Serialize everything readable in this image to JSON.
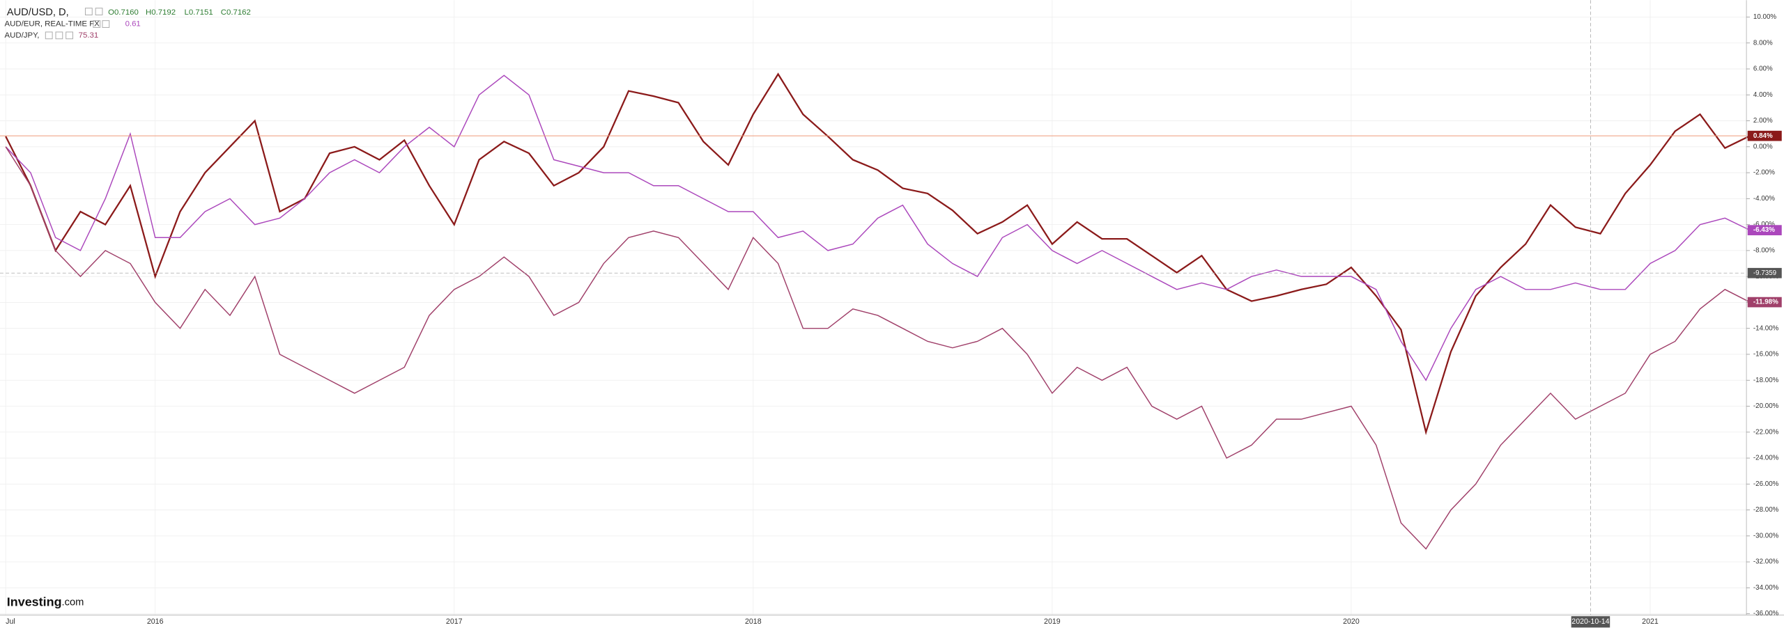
{
  "chart_data": {
    "type": "line",
    "header": {
      "symbol": "AUD/USD, D,",
      "open": "O0.7160",
      "high": "H0.7192",
      "low": "L0.7151",
      "close": "C0.7162",
      "compare1": "AUD/EUR, REAL-TIME FX",
      "compare1_value": "0.61",
      "compare2": "AUD/JPY,",
      "compare2_value": "75.31"
    },
    "categories": [
      "Jul",
      null,
      null,
      null,
      null,
      null,
      "2016",
      null,
      null,
      null,
      null,
      null,
      null,
      null,
      null,
      null,
      null,
      null,
      "2017",
      null,
      null,
      null,
      null,
      null,
      null,
      null,
      null,
      null,
      null,
      null,
      "2018",
      null,
      null,
      null,
      null,
      null,
      null,
      null,
      null,
      null,
      null,
      null,
      "2019",
      null,
      null,
      null,
      null,
      null,
      null,
      null,
      null,
      null,
      null,
      null,
      "2020",
      null,
      null,
      null,
      null,
      null,
      null,
      null,
      null,
      null,
      null,
      null,
      "2021",
      null,
      null,
      null,
      null
    ],
    "series": [
      {
        "name": "AUD/USD",
        "color": "#8b1a1a",
        "last_label": "0.84%",
        "values": [
          0.8,
          -3,
          -8,
          -5,
          -6,
          -3,
          -10,
          -5,
          -2,
          0,
          2,
          -5,
          -4,
          -0.5,
          0,
          -1,
          0.5,
          -3,
          -6,
          -1,
          0.4,
          -0.5,
          -3,
          -2,
          0,
          4.3,
          3.9,
          3.4,
          0.4,
          -1.4,
          2.5,
          5.6,
          2.5,
          0.8,
          -1,
          -1.8,
          -3.2,
          -3.6,
          -4.9,
          -6.7,
          -5.8,
          -4.5,
          -7.5,
          -5.8,
          -7.1,
          -7.1,
          -8.4,
          -9.7,
          -8.4,
          -11,
          -11.9,
          -11.5,
          -11,
          -10.6,
          -9.3,
          -11.5,
          -14.1,
          -22,
          -15.8,
          -11.5,
          -9.3,
          -7.5,
          -4.5,
          -6.2,
          -6.7,
          -3.6,
          -1.4,
          1.2,
          2.5,
          -0.1,
          0.84
        ]
      },
      {
        "name": "AUD/EUR",
        "color": "#ab47bc",
        "last_label": "-6.43%",
        "values": [
          0,
          -2,
          -7,
          -8,
          -4,
          1,
          -7,
          -7,
          -5,
          -4,
          -6,
          -5.5,
          -4,
          -2,
          -1,
          -2,
          0,
          1.5,
          0,
          4,
          5.5,
          4,
          -1,
          -1.5,
          -2,
          -2,
          -3,
          -3,
          -4,
          -5,
          -5,
          -7,
          -6.5,
          -8,
          -7.5,
          -5.5,
          -4.5,
          -7.5,
          -9,
          -10,
          -7,
          -6,
          -8,
          -9,
          -8,
          -9,
          -10,
          -11,
          -10.5,
          -11,
          -10,
          -9.5,
          -10,
          -10,
          -10,
          -11,
          -15,
          -18,
          -14,
          -11,
          -10,
          -11,
          -11,
          -10.5,
          -11,
          -11,
          -9,
          -8,
          -6,
          -5.5,
          -6.43
        ]
      },
      {
        "name": "AUD/JPY",
        "color": "#a0406a",
        "last_label": "-11.98%",
        "values": [
          0,
          -3,
          -8,
          -10,
          -8,
          -9,
          -12,
          -14,
          -11,
          -13,
          -10,
          -16,
          -17,
          -18,
          -19,
          -18,
          -17,
          -13,
          -11,
          -10,
          -8.5,
          -10,
          -13,
          -12,
          -9,
          -7,
          -6.5,
          -7,
          -9,
          -11,
          -7,
          -9,
          -14,
          -14,
          -12.5,
          -13,
          -14,
          -15,
          -15.5,
          -15,
          -14,
          -16,
          -19,
          -17,
          -18,
          -17,
          -20,
          -21,
          -20,
          -24,
          -23,
          -21,
          -21,
          -20.5,
          -20,
          -23,
          -29,
          -31,
          -28,
          -26,
          -23,
          -21,
          -19,
          -21,
          -20,
          -19,
          -16,
          -15,
          -12.5,
          -11,
          -11.98
        ]
      }
    ],
    "ylim": [
      -36.1,
      11.3
    ],
    "yticks": [
      {
        "value": 10,
        "label": "10.00%"
      },
      {
        "value": 8,
        "label": "8.00%"
      },
      {
        "value": 6,
        "label": "6.00%"
      },
      {
        "value": 4,
        "label": "4.00%"
      },
      {
        "value": 2,
        "label": "2.00%"
      },
      {
        "value": 0,
        "label": "0.00%"
      },
      {
        "value": -2,
        "label": "-2.00%"
      },
      {
        "value": -4,
        "label": "-4.00%"
      },
      {
        "value": -6,
        "label": "-6.00%"
      },
      {
        "value": -8,
        "label": "-8.00%"
      },
      {
        "value": -10,
        "label": "-10.00%"
      },
      {
        "value": -12,
        "label": "-12.00%"
      },
      {
        "value": -14,
        "label": "-14.00%"
      },
      {
        "value": -16,
        "label": "-16.00%"
      },
      {
        "value": -18,
        "label": "-18.00%"
      },
      {
        "value": -20,
        "label": "-20.00%"
      },
      {
        "value": -22,
        "label": "-22.00%"
      },
      {
        "value": -24,
        "label": "-24.00%"
      },
      {
        "value": -26,
        "label": "-26.00%"
      },
      {
        "value": -28,
        "label": "-28.00%"
      },
      {
        "value": -30,
        "label": "-30.00%"
      },
      {
        "value": -32,
        "label": "-32.00%"
      },
      {
        "value": -34,
        "label": "-34.00%"
      },
      {
        "value": -36,
        "label": "-36.00%"
      }
    ],
    "grid": true,
    "crosshair": {
      "x_label": "2020-10-14",
      "y": -9.7359,
      "y_label": "-9.7359"
    },
    "logo": {
      "brand": "Investing",
      "suffix": ".com"
    }
  }
}
